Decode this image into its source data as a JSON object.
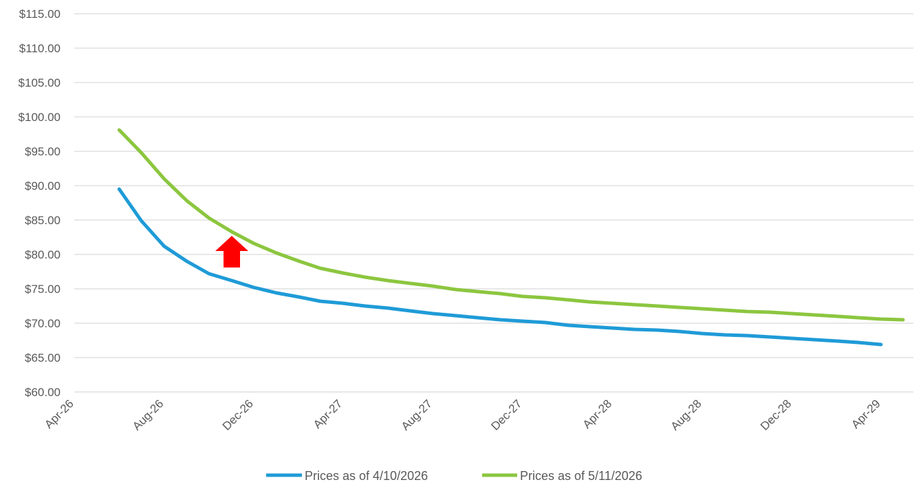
{
  "chart_data": {
    "type": "line",
    "title": "",
    "xlabel": "",
    "ylabel": "",
    "ylim": [
      60,
      115
    ],
    "y_ticks": [
      60,
      65,
      70,
      75,
      80,
      85,
      90,
      95,
      100,
      105,
      110,
      115
    ],
    "y_tick_labels": [
      "$60.00",
      "$65.00",
      "$70.00",
      "$75.00",
      "$80.00",
      "$85.00",
      "$90.00",
      "$95.00",
      "$100.00",
      "$105.00",
      "$110.00",
      "$115.00"
    ],
    "x_ticks": [
      "2026-04-01",
      "2026-08-01",
      "2026-12-01",
      "2027-04-01",
      "2027-08-01",
      "2027-12-01",
      "2028-04-01",
      "2028-08-01",
      "2028-12-01",
      "2029-04-01"
    ],
    "x_tick_labels": [
      "Apr-26",
      "Aug-26",
      "Dec-26",
      "Apr-27",
      "Aug-27",
      "Dec-27",
      "Apr-28",
      "Aug-28",
      "Dec-28",
      "Apr-29"
    ],
    "xlim": [
      "2026-04-01",
      "2029-05-15"
    ],
    "grid": "horizontal",
    "legend": "bottom",
    "annotation": {
      "shape": "up-arrow",
      "color": "#ff0000",
      "date": "2026-11-01",
      "y": 80.5
    },
    "series": [
      {
        "name": "Prices as of 4/10/2026",
        "color": "#1f9bd7",
        "x": [
          "2026-06-01",
          "2026-07-01",
          "2026-08-01",
          "2026-09-01",
          "2026-10-01",
          "2026-11-01",
          "2026-12-01",
          "2027-01-01",
          "2027-02-01",
          "2027-03-01",
          "2027-04-01",
          "2027-05-01",
          "2027-06-01",
          "2027-07-01",
          "2027-08-01",
          "2027-09-01",
          "2027-10-01",
          "2027-11-01",
          "2027-12-01",
          "2028-01-01",
          "2028-02-01",
          "2028-03-01",
          "2028-04-01",
          "2028-05-01",
          "2028-06-01",
          "2028-07-01",
          "2028-08-01",
          "2028-09-01",
          "2028-10-01",
          "2028-11-01",
          "2028-12-01",
          "2029-01-01",
          "2029-02-01",
          "2029-03-01",
          "2029-04-01"
        ],
        "values": [
          89.5,
          84.9,
          81.2,
          79.0,
          77.2,
          76.2,
          75.2,
          74.4,
          73.8,
          73.2,
          72.9,
          72.5,
          72.2,
          71.8,
          71.4,
          71.1,
          70.8,
          70.5,
          70.3,
          70.1,
          69.7,
          69.5,
          69.3,
          69.1,
          69.0,
          68.8,
          68.5,
          68.3,
          68.2,
          68.0,
          67.8,
          67.6,
          67.4,
          67.2,
          66.9
        ]
      },
      {
        "name": "Prices as of 5/11/2026",
        "color": "#8cc63f",
        "x": [
          "2026-06-01",
          "2026-07-01",
          "2026-08-01",
          "2026-09-01",
          "2026-10-01",
          "2026-11-01",
          "2026-12-01",
          "2027-01-01",
          "2027-02-01",
          "2027-03-01",
          "2027-04-01",
          "2027-05-01",
          "2027-06-01",
          "2027-07-01",
          "2027-08-01",
          "2027-09-01",
          "2027-10-01",
          "2027-11-01",
          "2027-12-01",
          "2028-01-01",
          "2028-02-01",
          "2028-03-01",
          "2028-04-01",
          "2028-05-01",
          "2028-06-01",
          "2028-07-01",
          "2028-08-01",
          "2028-09-01",
          "2028-10-01",
          "2028-11-01",
          "2028-12-01",
          "2029-01-01",
          "2029-02-01",
          "2029-03-01",
          "2029-04-01",
          "2029-05-01"
        ],
        "values": [
          98.1,
          94.8,
          91.0,
          87.8,
          85.3,
          83.3,
          81.6,
          80.2,
          79.0,
          78.0,
          77.3,
          76.7,
          76.2,
          75.8,
          75.4,
          74.9,
          74.6,
          74.3,
          73.9,
          73.7,
          73.4,
          73.1,
          72.9,
          72.7,
          72.5,
          72.3,
          72.1,
          71.9,
          71.7,
          71.6,
          71.4,
          71.2,
          71.0,
          70.8,
          70.6,
          70.5
        ]
      }
    ]
  }
}
